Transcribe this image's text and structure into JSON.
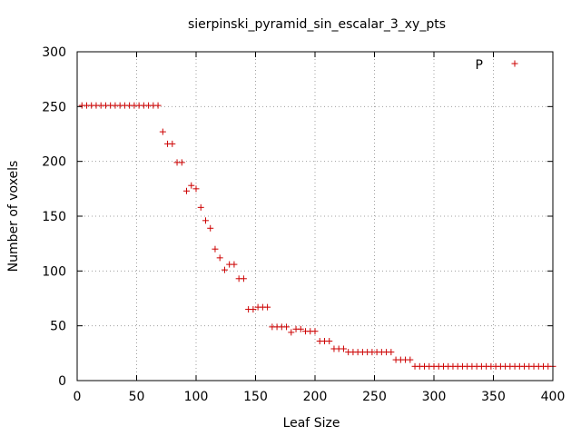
{
  "chart_data": {
    "type": "scatter",
    "title": "sierpinski_pyramid_sin_escalar_3_xy_pts",
    "xlabel": "Leaf Size",
    "ylabel": "Number of voxels",
    "xlim": [
      0,
      400
    ],
    "ylim": [
      0,
      300
    ],
    "x_ticks": [
      "0",
      "50",
      "100",
      "150",
      "200",
      "250",
      "300",
      "350",
      "400"
    ],
    "y_ticks": [
      "0",
      "50",
      "100",
      "150",
      "200",
      "250",
      "300"
    ],
    "grid": true,
    "legend_position": "top-right",
    "series": [
      {
        "name": "P",
        "color": "#cc0000",
        "marker": "plus",
        "points": [
          [
            4,
            251
          ],
          [
            8,
            251
          ],
          [
            12,
            251
          ],
          [
            16,
            251
          ],
          [
            20,
            251
          ],
          [
            24,
            251
          ],
          [
            28,
            251
          ],
          [
            32,
            251
          ],
          [
            36,
            251
          ],
          [
            40,
            251
          ],
          [
            44,
            251
          ],
          [
            48,
            251
          ],
          [
            52,
            251
          ],
          [
            56,
            251
          ],
          [
            60,
            251
          ],
          [
            64,
            251
          ],
          [
            68,
            251
          ],
          [
            72,
            227
          ],
          [
            76,
            216
          ],
          [
            80,
            216
          ],
          [
            84,
            199
          ],
          [
            88,
            199
          ],
          [
            92,
            173
          ],
          [
            96,
            178
          ],
          [
            100,
            175
          ],
          [
            104,
            158
          ],
          [
            108,
            146
          ],
          [
            112,
            139
          ],
          [
            116,
            120
          ],
          [
            120,
            112
          ],
          [
            124,
            101
          ],
          [
            128,
            106
          ],
          [
            132,
            106
          ],
          [
            136,
            93
          ],
          [
            140,
            93
          ],
          [
            144,
            65
          ],
          [
            148,
            65
          ],
          [
            152,
            67
          ],
          [
            156,
            67
          ],
          [
            160,
            67
          ],
          [
            164,
            49
          ],
          [
            168,
            49
          ],
          [
            172,
            49
          ],
          [
            176,
            49
          ],
          [
            180,
            44
          ],
          [
            184,
            47
          ],
          [
            188,
            47
          ],
          [
            192,
            45
          ],
          [
            196,
            45
          ],
          [
            200,
            45
          ],
          [
            204,
            36
          ],
          [
            208,
            36
          ],
          [
            212,
            36
          ],
          [
            216,
            29
          ],
          [
            220,
            29
          ],
          [
            224,
            29
          ],
          [
            228,
            26
          ],
          [
            232,
            26
          ],
          [
            236,
            26
          ],
          [
            240,
            26
          ],
          [
            244,
            26
          ],
          [
            248,
            26
          ],
          [
            252,
            26
          ],
          [
            256,
            26
          ],
          [
            260,
            26
          ],
          [
            264,
            26
          ],
          [
            268,
            19
          ],
          [
            272,
            19
          ],
          [
            276,
            19
          ],
          [
            280,
            19
          ],
          [
            284,
            13
          ],
          [
            288,
            13
          ],
          [
            292,
            13
          ],
          [
            296,
            13
          ],
          [
            300,
            13
          ],
          [
            304,
            13
          ],
          [
            308,
            13
          ],
          [
            312,
            13
          ],
          [
            316,
            13
          ],
          [
            320,
            13
          ],
          [
            324,
            13
          ],
          [
            328,
            13
          ],
          [
            332,
            13
          ],
          [
            336,
            13
          ],
          [
            340,
            13
          ],
          [
            344,
            13
          ],
          [
            348,
            13
          ],
          [
            352,
            13
          ],
          [
            356,
            13
          ],
          [
            360,
            13
          ],
          [
            364,
            13
          ],
          [
            368,
            13
          ],
          [
            372,
            13
          ],
          [
            376,
            13
          ],
          [
            380,
            13
          ],
          [
            384,
            13
          ],
          [
            388,
            13
          ],
          [
            392,
            13
          ],
          [
            396,
            13
          ],
          [
            400,
            13
          ]
        ]
      }
    ]
  }
}
